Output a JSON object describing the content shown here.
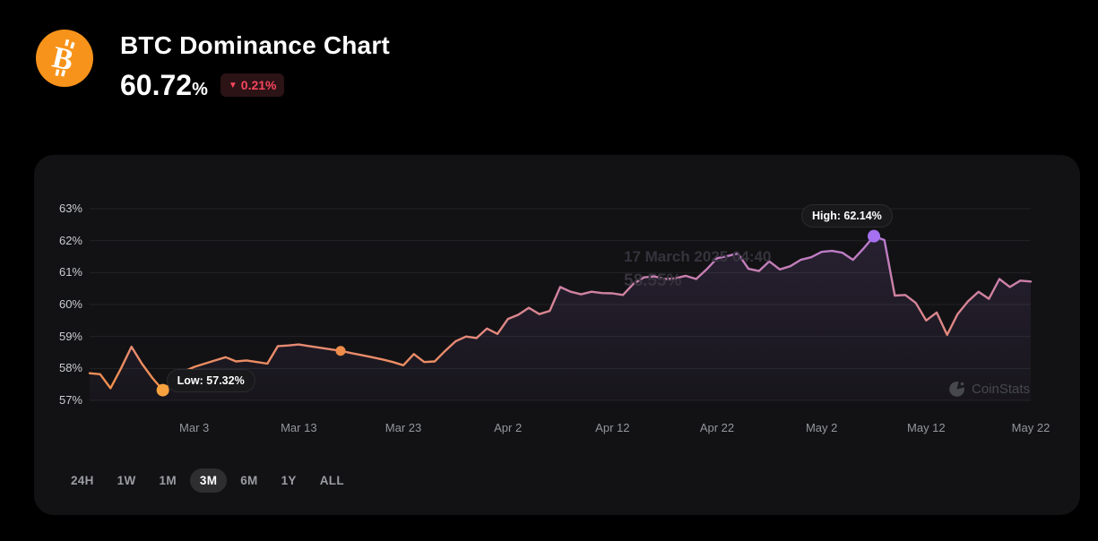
{
  "page": {
    "background": "#000000"
  },
  "header": {
    "logo_icon": "bitcoin-icon",
    "logo_color": "#f7931a",
    "title": "BTC Dominance Chart",
    "value": "60.72",
    "value_unit": "%",
    "change": {
      "direction": "down",
      "arrow": "▼",
      "label": "0.21%",
      "color": "#f6465d",
      "bg": "#2b1316"
    }
  },
  "chart_data": {
    "type": "area",
    "title": "BTC Dominance",
    "unit": "%",
    "interval": "daily",
    "x_start": "2025-02-21",
    "x_end": "2025-05-22",
    "ylim": [
      57,
      63
    ],
    "grid": true,
    "y_ticks": [
      {
        "label": "63%",
        "value": 63
      },
      {
        "label": "62%",
        "value": 62
      },
      {
        "label": "61%",
        "value": 61
      },
      {
        "label": "60%",
        "value": 60
      },
      {
        "label": "59%",
        "value": 59
      },
      {
        "label": "58%",
        "value": 58
      },
      {
        "label": "57%",
        "value": 57
      }
    ],
    "x_ticks": [
      {
        "label": "Mar 3",
        "index": 10
      },
      {
        "label": "Mar 13",
        "index": 20
      },
      {
        "label": "Mar 23",
        "index": 30
      },
      {
        "label": "Apr 2",
        "index": 40
      },
      {
        "label": "Apr 12",
        "index": 50
      },
      {
        "label": "Apr 22",
        "index": 60
      },
      {
        "label": "May 2",
        "index": 70
      },
      {
        "label": "May 12",
        "index": 80
      },
      {
        "label": "May 22",
        "index": 90
      }
    ],
    "values": [
      57.85,
      57.82,
      57.38,
      58.0,
      58.68,
      58.15,
      57.7,
      57.32,
      57.6,
      57.9,
      58.05,
      58.15,
      58.25,
      58.35,
      58.22,
      58.25,
      58.2,
      58.15,
      58.7,
      58.72,
      58.75,
      58.7,
      58.65,
      58.6,
      58.55,
      58.48,
      58.42,
      58.35,
      58.28,
      58.2,
      58.1,
      58.45,
      58.2,
      58.22,
      58.55,
      58.85,
      59.0,
      58.95,
      59.25,
      59.08,
      59.55,
      59.68,
      59.9,
      59.7,
      59.8,
      60.55,
      60.4,
      60.32,
      60.4,
      60.36,
      60.35,
      60.3,
      60.65,
      60.85,
      60.88,
      60.8,
      60.82,
      60.9,
      60.8,
      61.1,
      61.45,
      61.52,
      61.6,
      61.12,
      61.05,
      61.35,
      61.1,
      61.2,
      61.4,
      61.48,
      61.65,
      61.68,
      61.62,
      61.4,
      61.75,
      62.14,
      62.02,
      60.28,
      60.3,
      60.05,
      59.5,
      59.75,
      59.05,
      59.7,
      60.1,
      60.4,
      60.18,
      60.8,
      60.55,
      60.75,
      60.72
    ],
    "markers": {
      "low": {
        "index": 7,
        "value": 57.32,
        "label": "Low: 57.32%",
        "color": "#f7a23f"
      },
      "high": {
        "index": 75,
        "value": 62.14,
        "label": "High: 62.14%",
        "color": "#a571f0"
      },
      "hover": {
        "index": 24,
        "value": 58.55,
        "color": "#ef8c4a"
      }
    },
    "ghost_tooltip": {
      "line1": "17 March 2025 04:40",
      "line2": "58.55%"
    },
    "line_gradient_top_to_bottom": [
      "#ab76ee",
      "#c77fb2",
      "#e5897b",
      "#f5923f"
    ],
    "grid_color": "#232326",
    "watermark": "CoinStats"
  },
  "range_selector": {
    "options": [
      "24H",
      "1W",
      "1M",
      "3M",
      "6M",
      "1Y",
      "ALL"
    ],
    "selected": "3M"
  }
}
